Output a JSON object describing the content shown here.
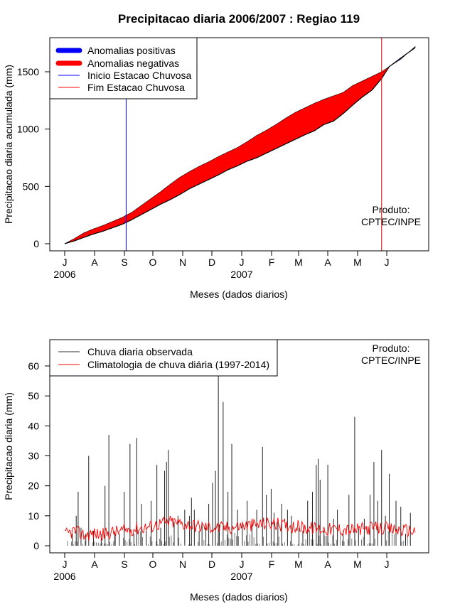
{
  "title": "Precipitacao diaria 2006/2007 : Regiao 119",
  "chart_data": [
    {
      "type": "area",
      "ylabel": "Precipitacao diaria acumulada (mm)",
      "xlabel": "Meses (dados diarios)",
      "ylim": [
        0,
        1800
      ],
      "yticks": [
        0,
        500,
        1000,
        1500
      ],
      "ytick_labels": [
        "0",
        "500",
        "1000",
        "1500"
      ],
      "month_labels": [
        "J",
        "A",
        "S",
        "O",
        "N",
        "D",
        "J",
        "F",
        "M",
        "A",
        "M",
        "J"
      ],
      "year_labels": [
        "2006",
        "2007"
      ],
      "days_total": 365,
      "legend": {
        "position": "top-left",
        "entries": [
          "Anomalias positivas",
          "Anomalias negativas",
          "Inicio Estacao Chuvosa",
          "Fim Estacao Chuvosa"
        ]
      },
      "annotation": [
        "Produto:",
        "CPTEC/INPE"
      ],
      "onset_day": 64,
      "end_day": 330,
      "observed_cumulative_knots": [
        [
          0,
          0
        ],
        [
          10,
          25
        ],
        [
          20,
          55
        ],
        [
          30,
          85
        ],
        [
          40,
          110
        ],
        [
          50,
          140
        ],
        [
          60,
          170
        ],
        [
          70,
          210
        ],
        [
          80,
          255
        ],
        [
          90,
          300
        ],
        [
          100,
          345
        ],
        [
          110,
          385
        ],
        [
          120,
          430
        ],
        [
          130,
          480
        ],
        [
          140,
          520
        ],
        [
          150,
          560
        ],
        [
          160,
          600
        ],
        [
          170,
          645
        ],
        [
          180,
          680
        ],
        [
          190,
          720
        ],
        [
          200,
          750
        ],
        [
          210,
          790
        ],
        [
          220,
          830
        ],
        [
          230,
          870
        ],
        [
          240,
          910
        ],
        [
          250,
          950
        ],
        [
          260,
          985
        ],
        [
          270,
          1040
        ],
        [
          280,
          1070
        ],
        [
          290,
          1135
        ],
        [
          300,
          1210
        ],
        [
          310,
          1280
        ],
        [
          320,
          1340
        ],
        [
          330,
          1440
        ],
        [
          338,
          1545
        ],
        [
          350,
          1620
        ],
        [
          365,
          1710
        ]
      ],
      "climatology_cumulative_knots": [
        [
          0,
          0
        ],
        [
          10,
          45
        ],
        [
          20,
          95
        ],
        [
          30,
          130
        ],
        [
          40,
          160
        ],
        [
          50,
          195
        ],
        [
          60,
          230
        ],
        [
          70,
          275
        ],
        [
          80,
          335
        ],
        [
          90,
          395
        ],
        [
          100,
          455
        ],
        [
          110,
          520
        ],
        [
          120,
          580
        ],
        [
          130,
          630
        ],
        [
          140,
          675
        ],
        [
          150,
          715
        ],
        [
          160,
          760
        ],
        [
          170,
          800
        ],
        [
          180,
          840
        ],
        [
          190,
          890
        ],
        [
          200,
          945
        ],
        [
          210,
          990
        ],
        [
          220,
          1040
        ],
        [
          230,
          1095
        ],
        [
          240,
          1145
        ],
        [
          250,
          1185
        ],
        [
          260,
          1225
        ],
        [
          270,
          1260
        ],
        [
          280,
          1290
        ],
        [
          290,
          1320
        ],
        [
          300,
          1380
        ],
        [
          310,
          1420
        ],
        [
          320,
          1460
        ],
        [
          330,
          1500
        ],
        [
          338,
          1545
        ],
        [
          350,
          1610
        ],
        [
          365,
          1720
        ]
      ]
    },
    {
      "type": "line",
      "ylabel": "Precipitacao diaria (mm)",
      "xlabel": "Meses (dados diarios)",
      "ylim": [
        0,
        65
      ],
      "yticks": [
        0,
        10,
        20,
        30,
        40,
        50,
        60
      ],
      "ytick_labels": [
        "0",
        "10",
        "20",
        "30",
        "40",
        "50",
        "60"
      ],
      "month_labels": [
        "J",
        "A",
        "S",
        "O",
        "N",
        "D",
        "J",
        "F",
        "M",
        "A",
        "M",
        "J"
      ],
      "year_labels": [
        "2006",
        "2007"
      ],
      "legend": {
        "position": "top-left",
        "entries": [
          "Chuva diaria observada",
          "Climatologia de chuva diária (1997-2014)"
        ]
      },
      "annotation": [
        "Produto:",
        "CPTEC/INPE"
      ],
      "observed_daily": [
        [
          8,
          4
        ],
        [
          12,
          10
        ],
        [
          14,
          18
        ],
        [
          17,
          6
        ],
        [
          22,
          4
        ],
        [
          25,
          30
        ],
        [
          30,
          5
        ],
        [
          38,
          4
        ],
        [
          42,
          20
        ],
        [
          46,
          37
        ],
        [
          52,
          5
        ],
        [
          57,
          4
        ],
        [
          62,
          18
        ],
        [
          68,
          34
        ],
        [
          72,
          4
        ],
        [
          75,
          36
        ],
        [
          80,
          14
        ],
        [
          85,
          5
        ],
        [
          90,
          15
        ],
        [
          96,
          27
        ],
        [
          100,
          6
        ],
        [
          104,
          25
        ],
        [
          106,
          28
        ],
        [
          108,
          32
        ],
        [
          114,
          8
        ],
        [
          118,
          10
        ],
        [
          125,
          12
        ],
        [
          130,
          10
        ],
        [
          132,
          16
        ],
        [
          135,
          12
        ],
        [
          140,
          5
        ],
        [
          143,
          8
        ],
        [
          147,
          6
        ],
        [
          150,
          14
        ],
        [
          154,
          21
        ],
        [
          157,
          25
        ],
        [
          161,
          7
        ],
        [
          165,
          48
        ],
        [
          170,
          18
        ],
        [
          174,
          34
        ],
        [
          180,
          12
        ],
        [
          185,
          8
        ],
        [
          190,
          15
        ],
        [
          195,
          7
        ],
        [
          200,
          12
        ],
        [
          206,
          33
        ],
        [
          210,
          17
        ],
        [
          215,
          19
        ],
        [
          218,
          11
        ],
        [
          222,
          8
        ],
        [
          226,
          14
        ],
        [
          232,
          12
        ],
        [
          236,
          10
        ],
        [
          244,
          6
        ],
        [
          248,
          5
        ],
        [
          253,
          15
        ],
        [
          258,
          18
        ],
        [
          262,
          27
        ],
        [
          264,
          29
        ],
        [
          266,
          22
        ],
        [
          270,
          5
        ],
        [
          274,
          27
        ],
        [
          280,
          9
        ],
        [
          284,
          12
        ],
        [
          290,
          5
        ],
        [
          296,
          17
        ],
        [
          302,
          43
        ],
        [
          306,
          6
        ],
        [
          312,
          9
        ],
        [
          318,
          17
        ],
        [
          322,
          28
        ],
        [
          326,
          15
        ],
        [
          330,
          32
        ],
        [
          334,
          10
        ],
        [
          338,
          24
        ],
        [
          345,
          15
        ],
        [
          350,
          13
        ],
        [
          355,
          4
        ],
        [
          360,
          11
        ]
      ],
      "spike_day": 160,
      "spike_value": 57,
      "climatology_knots": [
        [
          0,
          3.5
        ],
        [
          10,
          5.0
        ],
        [
          20,
          3.5
        ],
        [
          30,
          4.0
        ],
        [
          40,
          3.8
        ],
        [
          50,
          4.5
        ],
        [
          60,
          5.0
        ],
        [
          70,
          5.5
        ],
        [
          80,
          6.0
        ],
        [
          90,
          6.5
        ],
        [
          100,
          7.5
        ],
        [
          110,
          8.0
        ],
        [
          120,
          7.5
        ],
        [
          130,
          7.0
        ],
        [
          140,
          6.5
        ],
        [
          150,
          6.2
        ],
        [
          160,
          6.0
        ],
        [
          170,
          6.0
        ],
        [
          180,
          6.5
        ],
        [
          190,
          6.8
        ],
        [
          200,
          7.0
        ],
        [
          210,
          7.5
        ],
        [
          220,
          7.2
        ],
        [
          230,
          6.8
        ],
        [
          240,
          6.5
        ],
        [
          250,
          6.0
        ],
        [
          260,
          5.8
        ],
        [
          270,
          5.5
        ],
        [
          280,
          5.5
        ],
        [
          290,
          5.5
        ],
        [
          300,
          5.2
        ],
        [
          310,
          5.5
        ],
        [
          320,
          6.0
        ],
        [
          330,
          5.8
        ],
        [
          340,
          5.5
        ],
        [
          350,
          5.2
        ],
        [
          365,
          5.0
        ]
      ]
    }
  ]
}
